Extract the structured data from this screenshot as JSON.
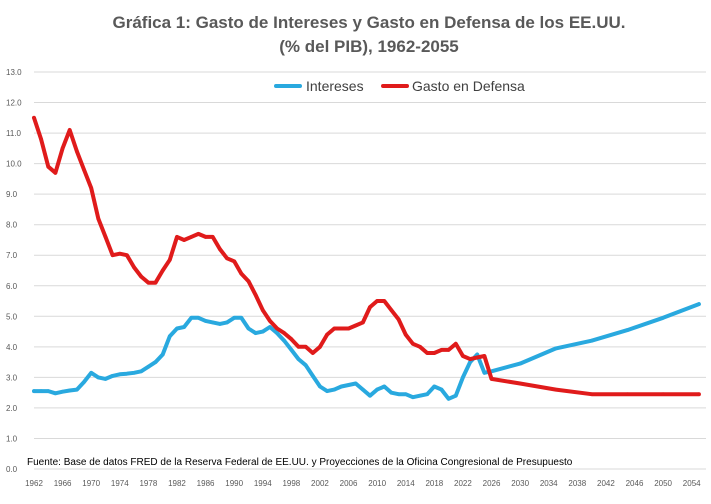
{
  "chart_data": {
    "type": "line",
    "title": "Gráfica 1: Gasto de Intereses y Gasto en Defensa de los EE.UU.",
    "subtitle": "(% del PIB), 1962-2055",
    "xlabel": "",
    "ylabel": "",
    "xlim": [
      1962,
      2056
    ],
    "ylim": [
      0,
      13
    ],
    "y_ticks": [
      "0.0",
      "1.0",
      "2.0",
      "3.0",
      "4.0",
      "5.0",
      "6.0",
      "7.0",
      "8.0",
      "9.0",
      "10.0",
      "11.0",
      "12.0",
      "13.0"
    ],
    "x_ticks": [
      "1962",
      "1966",
      "1970",
      "1974",
      "1978",
      "1982",
      "1986",
      "1990",
      "1994",
      "1998",
      "2002",
      "2006",
      "2010",
      "2014",
      "2018",
      "2022",
      "2026",
      "2030",
      "2034",
      "2038",
      "2042",
      "2046",
      "2050",
      "2054"
    ],
    "grid": true,
    "legend": "top-center",
    "series": [
      {
        "name": "Intereses",
        "color": "#29a9df",
        "x": [
          1962,
          1963,
          1964,
          1965,
          1966,
          1967,
          1968,
          1969,
          1970,
          1971,
          1972,
          1973,
          1974,
          1975,
          1976,
          1977,
          1978,
          1979,
          1980,
          1981,
          1982,
          1983,
          1984,
          1985,
          1986,
          1987,
          1988,
          1989,
          1990,
          1991,
          1992,
          1993,
          1994,
          1995,
          1996,
          1997,
          1998,
          1999,
          2000,
          2001,
          2002,
          2003,
          2004,
          2005,
          2006,
          2007,
          2008,
          2009,
          2010,
          2011,
          2012,
          2013,
          2014,
          2015,
          2016,
          2017,
          2018,
          2019,
          2020,
          2021,
          2022,
          2023,
          2024,
          2025,
          2026,
          2030,
          2035,
          2040,
          2045,
          2050,
          2055
        ],
        "values": [
          2.55,
          2.55,
          2.55,
          2.48,
          2.53,
          2.57,
          2.6,
          2.85,
          3.15,
          3.0,
          2.95,
          3.05,
          3.1,
          3.12,
          3.15,
          3.2,
          3.35,
          3.5,
          3.75,
          4.35,
          4.6,
          4.65,
          4.95,
          4.95,
          4.85,
          4.8,
          4.75,
          4.8,
          4.95,
          4.95,
          4.6,
          4.45,
          4.5,
          4.65,
          4.45,
          4.2,
          3.9,
          3.6,
          3.4,
          3.05,
          2.7,
          2.55,
          2.6,
          2.7,
          2.75,
          2.8,
          2.6,
          2.4,
          2.6,
          2.7,
          2.5,
          2.45,
          2.45,
          2.35,
          2.4,
          2.45,
          2.7,
          2.6,
          2.3,
          2.4,
          3.0,
          3.5,
          3.75,
          3.15,
          3.2,
          3.45,
          3.95,
          4.2,
          4.55,
          4.95,
          5.4
        ]
      },
      {
        "name": "Gasto en Defensa",
        "color": "#e01b1b",
        "x": [
          1962,
          1963,
          1964,
          1965,
          1966,
          1967,
          1968,
          1969,
          1970,
          1971,
          1972,
          1973,
          1974,
          1975,
          1976,
          1977,
          1978,
          1979,
          1980,
          1981,
          1982,
          1983,
          1984,
          1985,
          1986,
          1987,
          1988,
          1989,
          1990,
          1991,
          1992,
          1993,
          1994,
          1995,
          1996,
          1997,
          1998,
          1999,
          2000,
          2001,
          2002,
          2003,
          2004,
          2005,
          2006,
          2007,
          2008,
          2009,
          2010,
          2011,
          2012,
          2013,
          2014,
          2015,
          2016,
          2017,
          2018,
          2019,
          2020,
          2021,
          2022,
          2023,
          2024,
          2025,
          2026,
          2030,
          2035,
          2040,
          2045,
          2050,
          2055
        ],
        "values": [
          11.5,
          10.8,
          9.9,
          9.7,
          10.5,
          11.1,
          10.4,
          9.8,
          9.2,
          8.2,
          7.6,
          7.0,
          7.05,
          7.0,
          6.6,
          6.3,
          6.1,
          6.1,
          6.5,
          6.85,
          7.6,
          7.5,
          7.6,
          7.7,
          7.6,
          7.6,
          7.2,
          6.9,
          6.8,
          6.4,
          6.15,
          5.7,
          5.2,
          4.85,
          4.6,
          4.45,
          4.25,
          4.0,
          4.0,
          3.8,
          4.0,
          4.4,
          4.6,
          4.6,
          4.6,
          4.7,
          4.8,
          5.3,
          5.5,
          5.5,
          5.2,
          4.9,
          4.4,
          4.1,
          4.0,
          3.8,
          3.8,
          3.9,
          3.9,
          4.1,
          3.7,
          3.6,
          3.65,
          3.7,
          2.95,
          2.8,
          2.6,
          2.45,
          2.45,
          2.45,
          2.45
        ]
      }
    ],
    "source": "Fuente: Base de datos FRED de la Reserva Federal de EE.UU. y Proyecciones de la Oficina Congresional de Presupuesto"
  }
}
